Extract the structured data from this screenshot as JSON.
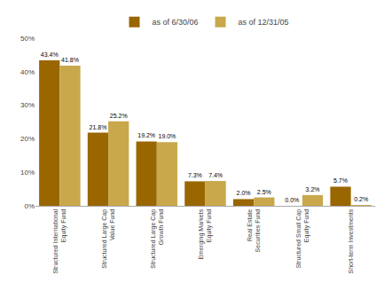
{
  "chart_data": {
    "type": "bar",
    "categories": [
      "Structured International\nEquity Fund",
      "Structured Large Cap\nValue Fund",
      "Structured Large Cap\nGrowth Fund",
      "Emerging Markets\nEquity Fund",
      "Real Estate\nSecurities Fund",
      "Structured Small Cap\nEquity Fund",
      "Short-term Investments"
    ],
    "series": [
      {
        "name": "as of 6/30/06",
        "color": "#996600",
        "values": [
          43.4,
          21.8,
          19.2,
          7.3,
          2.0,
          0.0,
          5.7
        ],
        "value_labels": [
          "43.4%",
          "21.8%",
          "19.2%",
          "7.3%",
          "2.0%",
          "0.0%",
          "5.7%"
        ]
      },
      {
        "name": "as of 12/31/05",
        "color": "#c8a84b",
        "values": [
          41.8,
          25.2,
          19.0,
          7.4,
          2.5,
          3.2,
          0.2
        ],
        "value_labels": [
          "41.8%",
          "25.2%",
          "19.0%",
          "7.4%",
          "2.5%",
          "3.2%",
          "0.2%"
        ]
      }
    ],
    "ylim": [
      0,
      50
    ],
    "yticks": [
      {
        "value": 0,
        "label": "0%"
      },
      {
        "value": 10,
        "label": "10%"
      },
      {
        "value": 20,
        "label": "20%"
      },
      {
        "value": 30,
        "label": "30%"
      },
      {
        "value": 40,
        "label": "40%"
      },
      {
        "value": 50,
        "label": "50%"
      }
    ],
    "grid": false,
    "legend": "top",
    "data_labels": true
  }
}
